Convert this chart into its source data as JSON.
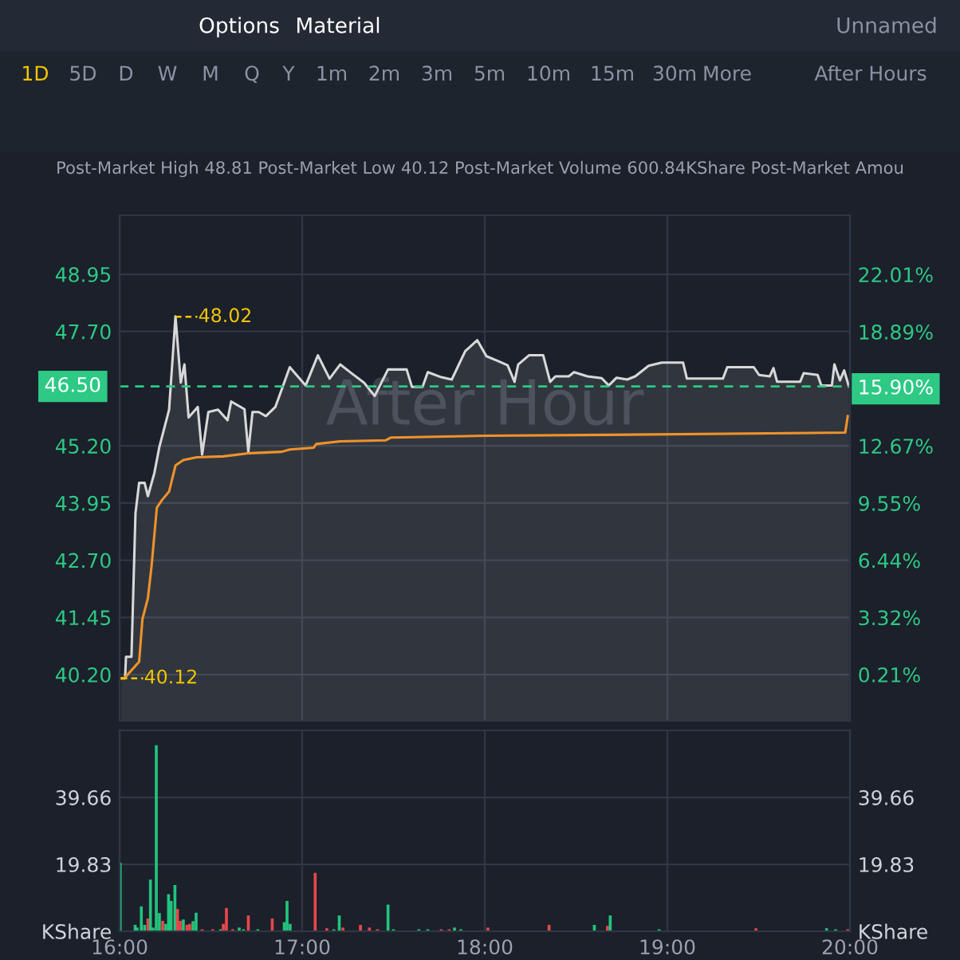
{
  "chart_data": [
    {
      "type": "line",
      "annotations": [
        "Options",
        "Material",
        "Unnamed",
        "1D",
        "5D",
        "D",
        "W",
        "M",
        "Q",
        "Y",
        "1m",
        "2m",
        "3m",
        "5m",
        "10m",
        "15m",
        "30m",
        "More",
        "After Hours",
        "Post-Market High 48.81 Post-Market Low 40.12 Post-Market Volume 600.84KShare Post-Market Amou",
        "After Hour",
        {
          "text": "48.02",
          "x": 16.306,
          "y": 48.02
        },
        {
          "text": "40.12",
          "x": 16.009,
          "y": 40.12
        }
      ],
      "series": [
        {
          "type": "area",
          "color": "#d8d8d8",
          "x": [
            16.009,
            16.03,
            16.035,
            16.065,
            16.087,
            16.107,
            16.137,
            16.155,
            16.19,
            16.218,
            16.271,
            16.306,
            16.335,
            16.355,
            16.378,
            16.428,
            16.452,
            16.486,
            16.539,
            16.591,
            16.611,
            16.684,
            16.705,
            16.728,
            16.762,
            16.801,
            16.853,
            16.932,
            17.019,
            17.086,
            17.15,
            17.208,
            17.266,
            17.339,
            17.397,
            17.47,
            17.572,
            17.601,
            17.659,
            17.688,
            17.762,
            17.819,
            17.893,
            17.959,
            18.009,
            18.081,
            18.125,
            18.163,
            18.183,
            18.242,
            18.32,
            18.358,
            18.387,
            18.46,
            18.489,
            18.562,
            18.64,
            18.679,
            18.722,
            18.78,
            18.824,
            18.897,
            18.969,
            19.086,
            19.107,
            19.304,
            19.328,
            19.473,
            19.502,
            19.561,
            19.581,
            19.601,
            19.727,
            19.747,
            19.823,
            19.843,
            19.901,
            19.915,
            19.945,
            19.968,
            19.994
          ],
          "values": [
            40.12,
            40.12,
            40.59,
            40.59,
            43.73,
            44.39,
            44.39,
            44.1,
            44.6,
            45.18,
            45.99,
            48.03,
            46.58,
            46.98,
            45.82,
            46.05,
            45.01,
            45.94,
            45.99,
            45.76,
            46.17,
            46.0,
            45.07,
            45.94,
            45.94,
            45.85,
            46.05,
            46.92,
            46.52,
            47.18,
            46.67,
            46.98,
            46.8,
            46.58,
            46.29,
            46.87,
            46.87,
            46.49,
            46.49,
            46.81,
            46.7,
            46.65,
            47.27,
            47.51,
            47.16,
            47.04,
            46.96,
            46.6,
            46.98,
            47.18,
            47.18,
            46.6,
            46.72,
            46.72,
            46.81,
            46.72,
            46.68,
            46.52,
            46.69,
            46.65,
            46.72,
            46.95,
            47.02,
            47.02,
            46.67,
            46.67,
            46.92,
            46.92,
            46.75,
            46.72,
            46.9,
            46.6,
            46.6,
            46.79,
            46.75,
            46.52,
            46.52,
            46.98,
            46.63,
            46.85,
            46.5
          ]
        },
        {
          "type": "line",
          "color": "#f0922b",
          "x": [
            16.009,
            16.026,
            16.107,
            16.125,
            16.155,
            16.175,
            16.204,
            16.233,
            16.271,
            16.306,
            16.349,
            16.422,
            16.568,
            16.714,
            16.888,
            16.932,
            17.063,
            17.077,
            17.208,
            17.456,
            17.485,
            18.0,
            18.664,
            19.974,
            19.988
          ],
          "values": [
            40.12,
            40.12,
            40.48,
            41.41,
            41.87,
            42.57,
            43.85,
            44.02,
            44.2,
            44.77,
            44.89,
            44.95,
            44.97,
            45.04,
            45.07,
            45.12,
            45.16,
            45.24,
            45.3,
            45.32,
            45.38,
            45.42,
            45.44,
            45.49,
            45.85
          ]
        }
      ],
      "xlim": [
        16,
        20
      ],
      "xticks": [
        {
          "value": 16,
          "label": null
        },
        {
          "value": 17,
          "label": null
        },
        {
          "value": 18,
          "label": null
        },
        {
          "value": 19,
          "label": null
        },
        {
          "value": 20,
          "label": null
        }
      ],
      "ylim": [
        39.19,
        50.24
      ],
      "yticks": [
        {
          "value": 40.2,
          "label": "40.20"
        },
        41.45,
        {
          "value": 42.7,
          "label": "42.70"
        },
        43.95,
        {
          "value": 45.2,
          "label": "45.20"
        },
        {
          "value": 47.7,
          "label": "47.70"
        },
        48.95
      ],
      "y2lim": [
        -2.31,
        25.24
      ],
      "y2ticks": [
        {
          "value": 0.21,
          "label": "0.21%"
        },
        {
          "value": 3.32,
          "label": "3.32%"
        },
        {
          "value": 6.44,
          "label": "6.44%"
        },
        {
          "value": 9.55,
          "label": "9.55%"
        },
        {
          "value": 12.67,
          "label": "12.67%"
        },
        {
          "value": 15.9,
          "label": "15.90%"
        },
        {
          "value": 18.89,
          "label": "18.89%"
        },
        {
          "value": 22.01,
          "label": "22.01%"
        }
      ],
      "ref_lines": [
        {
          "axis": "y",
          "value": 46.5,
          "label": "46.50",
          "color": "#2dc985",
          "line_style": "dashed"
        }
      ],
      "grid": true,
      "tick_labels": "y"
    },
    {
      "type": "bar",
      "x": [
        16.003,
        16.085,
        16.096,
        16.119,
        16.137,
        16.155,
        16.169,
        16.183,
        16.201,
        16.218,
        16.236,
        16.253,
        16.268,
        16.282,
        16.303,
        16.317,
        16.332,
        16.349,
        16.369,
        16.384,
        16.402,
        16.419,
        16.452,
        16.51,
        16.553,
        16.568,
        16.585,
        16.62,
        16.655,
        16.678,
        16.705,
        16.757,
        16.836,
        16.902,
        16.917,
        16.934,
        17.071,
        17.135,
        17.173,
        17.203,
        17.223,
        17.319,
        17.368,
        17.412,
        17.47,
        17.5,
        17.639,
        17.688,
        17.762,
        17.805,
        17.834,
        17.869,
        18.017,
        18.352,
        18.6,
        18.672,
        18.687,
        18.955,
        19.485,
        19.872,
        19.921,
        19.988
      ],
      "values": [
        20.3,
        1.9,
        1.1,
        7.4,
        1.9,
        3.8,
        15.3,
        1.1,
        55.1,
        5.4,
        3.1,
        2.2,
        11.0,
        9.0,
        13.7,
        6.6,
        3.1,
        3.5,
        1.9,
        2.2,
        3.0,
        5.5,
        0.6,
        0.6,
        0.6,
        2.2,
        6.9,
        0.6,
        1.1,
        0.6,
        4.7,
        0.6,
        3.8,
        2.7,
        9.0,
        2.2,
        17.3,
        0.9,
        0.6,
        4.7,
        1.1,
        1.9,
        1.1,
        0.6,
        7.9,
        0.6,
        0.6,
        0.6,
        0.6,
        0.6,
        1.1,
        0.6,
        1.1,
        1.9,
        1.9,
        1.6,
        4.7,
        0.6,
        0.9,
        0.9,
        0.6,
        0.6
      ],
      "colors": [
        "#22c47d",
        "#22c47d",
        "#22c47d",
        "#22c47d",
        "#22c47d",
        "#e8474a",
        "#22c47d",
        "#22c47d",
        "#22c47d",
        "#22c47d",
        "#e8474a",
        "#22c47d",
        "#22c47d",
        "#22c47d",
        "#22c47d",
        "#e8474a",
        "#e8474a",
        "#22c47d",
        "#e8474a",
        "#e8474a",
        "#22c47d",
        "#22c47d",
        "#e8474a",
        "#e8474a",
        "#22c47d",
        "#e8474a",
        "#e8474a",
        "#e8474a",
        "#22c47d",
        "#22c47d",
        "#e8474a",
        "#22c47d",
        "#e8474a",
        "#22c47d",
        "#22c47d",
        "#22c47d",
        "#e8474a",
        "#e8474a",
        "#22c47d",
        "#22c47d",
        "#e8474a",
        "#e8474a",
        "#e8474a",
        "#e8474a",
        "#22c47d",
        "#22c47d",
        "#22c47d",
        "#22c47d",
        "#e8474a",
        "#e8474a",
        "#22c47d",
        "#22c47d",
        "#e8474a",
        "#e8474a",
        "#22c47d",
        "#e8474a",
        "#22c47d",
        "#22c47d",
        "#e8474a",
        "#22c47d",
        "#22c47d",
        "#e8474a"
      ],
      "xlim": [
        16,
        20
      ],
      "xticks": [
        {
          "value": 16,
          "label": "16:00"
        },
        {
          "value": 17,
          "label": "17:00"
        },
        {
          "value": 18,
          "label": "18:00"
        },
        {
          "value": 19,
          "label": "19:00"
        },
        {
          "value": 20,
          "label": "20:00"
        }
      ],
      "ylim": [
        0,
        59.5
      ],
      "yticks": [
        {
          "value": 0,
          "label": "KShare"
        },
        19.83,
        39.66
      ],
      "y2lim": [
        0,
        59.5
      ],
      "y2ticks": [
        {
          "value": 0,
          "label": "KShare"
        },
        19.83,
        39.66
      ],
      "grid": true
    }
  ]
}
